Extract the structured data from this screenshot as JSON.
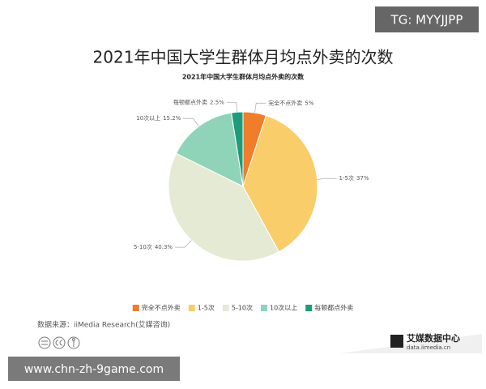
{
  "chart_data": {
    "type": "pie",
    "title": "2021年中国大学生群体月均点外卖的次数",
    "subtitle": "2021年中国大学生群体月均点外卖的次数",
    "categories": [
      "完全不点外卖",
      "1-5次",
      "5-10次",
      "10次以上",
      "每顿都点外卖"
    ],
    "values": [
      5,
      37,
      40.3,
      15.2,
      2.5
    ],
    "value_labels": [
      "5%",
      "37%",
      "40.3%",
      "15.2%",
      "2.5%"
    ],
    "colors": [
      "#f07d2a",
      "#f9cd6a",
      "#e5ead5",
      "#8fd3b8",
      "#1e9b7a"
    ],
    "legend": "bottom",
    "source": "数据来源：iiMedia Research(艾媒咨询)"
  },
  "logo": {
    "name": "艾媒数据中心",
    "url": "data.iimedia.cn"
  },
  "watermark_top": "TG: MYYJJPP",
  "watermark_bottom": "www.chn-zh-9game.com"
}
